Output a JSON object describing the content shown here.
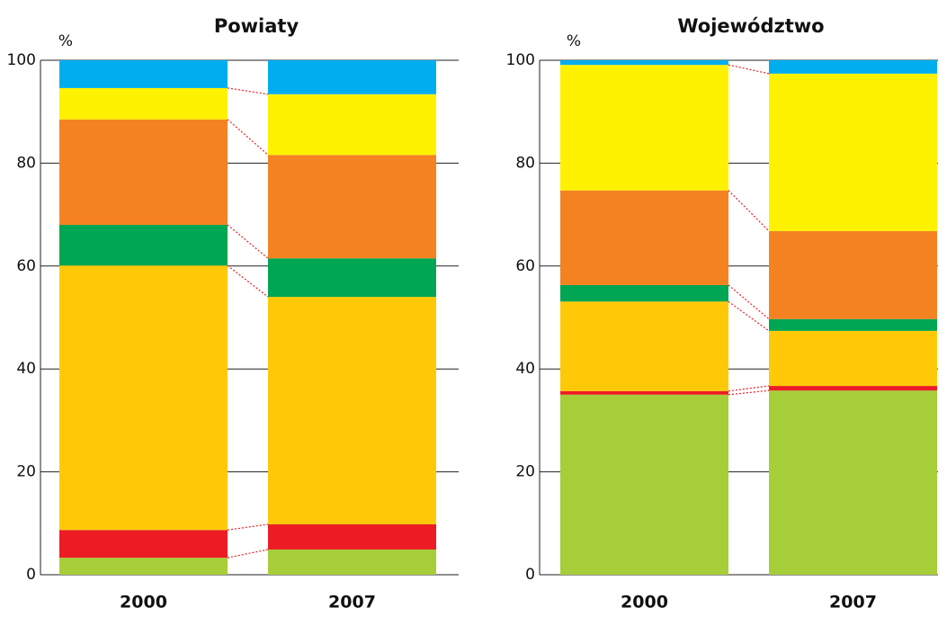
{
  "chart_data": [
    {
      "type": "bar",
      "stacked": true,
      "title": "Powiaty",
      "y_label": "%",
      "categories": [
        "2000",
        "2007"
      ],
      "series": [
        {
          "color": "#a6ce39",
          "values": [
            3.3,
            4.9
          ]
        },
        {
          "color": "#ed1c24",
          "values": [
            5.4,
            4.9
          ]
        },
        {
          "color": "#ffc907",
          "values": [
            51.4,
            44.2
          ]
        },
        {
          "color": "#00a651",
          "values": [
            7.9,
            7.5
          ]
        },
        {
          "color": "#f58220",
          "values": [
            20.5,
            20.1
          ]
        },
        {
          "color": "#fff200",
          "values": [
            6.1,
            11.8
          ]
        },
        {
          "color": "#00aeef",
          "values": [
            5.4,
            6.6
          ]
        }
      ],
      "ylim": [
        0,
        100
      ],
      "yticks": [
        0,
        20,
        40,
        60,
        80,
        100
      ],
      "grid": true
    },
    {
      "type": "bar",
      "stacked": true,
      "title": "Województwo",
      "y_label": "%",
      "categories": [
        "2000",
        "2007"
      ],
      "series": [
        {
          "color": "#a6ce39",
          "values": [
            35.0,
            35.8
          ]
        },
        {
          "color": "#ed1c24",
          "values": [
            0.7,
            0.9
          ]
        },
        {
          "color": "#ffc907",
          "values": [
            17.4,
            10.7
          ]
        },
        {
          "color": "#00a651",
          "values": [
            3.2,
            2.3
          ]
        },
        {
          "color": "#f58220",
          "values": [
            18.4,
            17.1
          ]
        },
        {
          "color": "#fff200",
          "values": [
            24.4,
            30.6
          ]
        },
        {
          "color": "#00aeef",
          "values": [
            0.9,
            2.6
          ]
        }
      ],
      "ylim": [
        0,
        100
      ],
      "yticks": [
        0,
        20,
        40,
        60,
        80,
        100
      ],
      "grid": true
    }
  ]
}
